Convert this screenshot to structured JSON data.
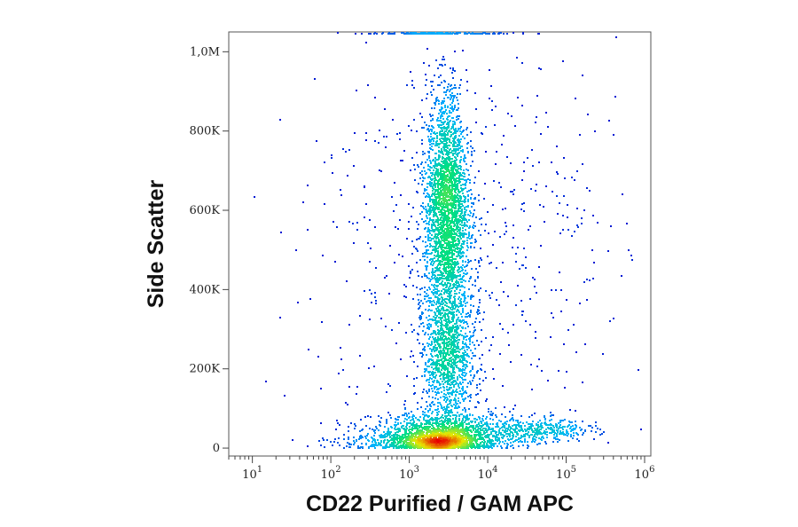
{
  "chart_data": {
    "type": "scatter",
    "style": "flow-cytometry density dot plot (blue → green → yellow → red by density)",
    "xlabel": "CD22 Purified / GAM APC",
    "ylabel": "Side Scatter",
    "x_scale": "log",
    "xlim": [
      5,
      1200000
    ],
    "ylim": [
      -20000,
      1050000
    ],
    "x_ticks": [
      {
        "value": 10,
        "base": "10",
        "exp": "1"
      },
      {
        "value": 100,
        "base": "10",
        "exp": "2"
      },
      {
        "value": 1000,
        "base": "10",
        "exp": "3"
      },
      {
        "value": 10000,
        "base": "10",
        "exp": "4"
      },
      {
        "value": 100000,
        "base": "10",
        "exp": "5"
      },
      {
        "value": 1000000,
        "base": "10",
        "exp": "6"
      }
    ],
    "y_ticks": [
      {
        "value": 0,
        "label": "0"
      },
      {
        "value": 200000,
        "label": "200K"
      },
      {
        "value": 400000,
        "label": "400K"
      },
      {
        "value": 600000,
        "label": "600K"
      },
      {
        "value": 800000,
        "label": "800K"
      },
      {
        "value": 1000000,
        "label": "1,0M"
      }
    ],
    "grid": false,
    "legend": "none",
    "populations": [
      {
        "x_center": 2500,
        "y_center": 10000,
        "x_spread_decades": 0.25,
        "y_spread": 18000,
        "count": 900
      },
      {
        "x_center": 2800,
        "y_center": 40000,
        "x_spread_decades": 0.45,
        "y_spread": 25000,
        "count": 1100
      },
      {
        "x_center": 1500,
        "y_center": 15000,
        "x_spread_decades": 0.55,
        "y_spread": 15000,
        "count": 500
      },
      {
        "x_center": 3000,
        "y_center": 620000,
        "x_spread_decades": 0.13,
        "y_spread": 140000,
        "count": 2200
      },
      {
        "x_center": 3200,
        "y_center": 230000,
        "x_spread_decades": 0.16,
        "y_spread": 80000,
        "count": 900
      },
      {
        "x_center": 3000,
        "y_center": 400000,
        "x_spread_decades": 0.2,
        "y_spread": 200000,
        "count": 900
      },
      {
        "x_center": 50000,
        "y_center": 45000,
        "x_spread_decades": 0.35,
        "y_spread": 15000,
        "count": 350
      },
      {
        "x_center": 80000,
        "y_center": 550000,
        "x_spread_decades": 0.5,
        "y_spread": 200000,
        "count": 80
      },
      {
        "x_center": 3000,
        "y_center": 500000,
        "x_spread_decades": 0.9,
        "y_spread": 260000,
        "count": 500
      }
    ]
  },
  "colors": {
    "density_low": "#0000cc",
    "density_mid_low": "#00b4ff",
    "density_mid": "#00e080",
    "density_mid_high": "#e8e800",
    "density_high": "#e80000",
    "frame": "#444444"
  }
}
